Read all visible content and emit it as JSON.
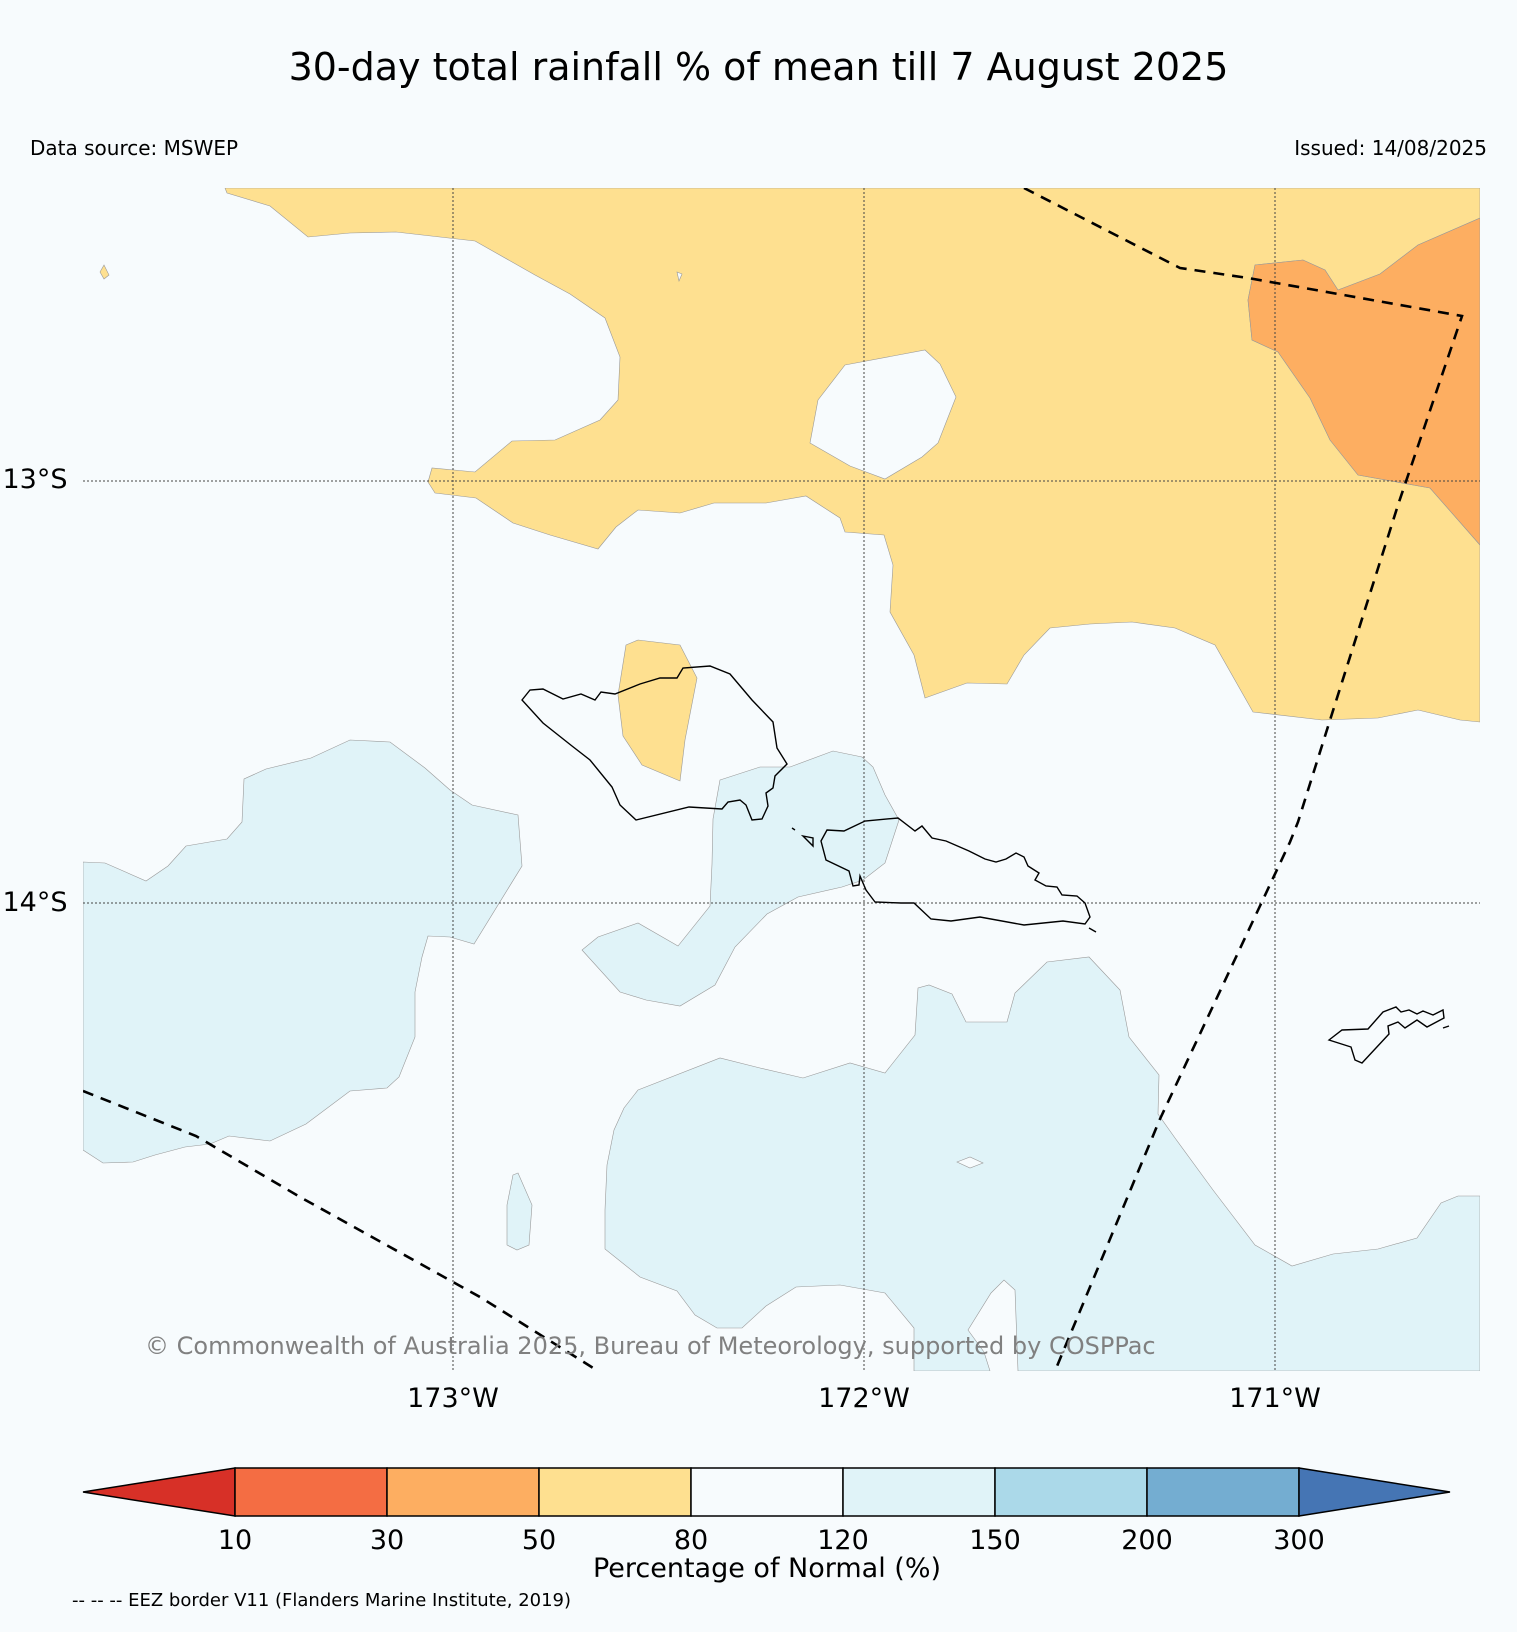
{
  "title": "30-day total rainfall % of mean till 7 August 2025",
  "data_source": "Data source: MSWEP",
  "issued": "Issued: 14/08/2025",
  "copyright": "© Commonwealth of Australia 2025, Bureau of Meteorology, supported by COSPPac",
  "lat_labels": [
    "13°S",
    "14°S"
  ],
  "lon_labels": [
    "173°W",
    "172°W",
    "171°W"
  ],
  "colorbar": {
    "label": "Percentage of Normal (%)",
    "ticks": [
      "10",
      "30",
      "50",
      "80",
      "120",
      "150",
      "200",
      "300"
    ],
    "colors": [
      "#d73027",
      "#f46d43",
      "#fdae61",
      "#fee090",
      "#f7fbfd",
      "#e0f3f8",
      "#abd9e9",
      "#74add1",
      "#4575b4"
    ]
  },
  "eez_note": "-- -- -- EEZ border V11 (Flanders Marine Institute, 2019)",
  "colors": {
    "below_50_80": "#fee090",
    "below_30_50": "#fdae61",
    "above_120_150": "#e0f3f8",
    "background": "#f7fbfd"
  }
}
